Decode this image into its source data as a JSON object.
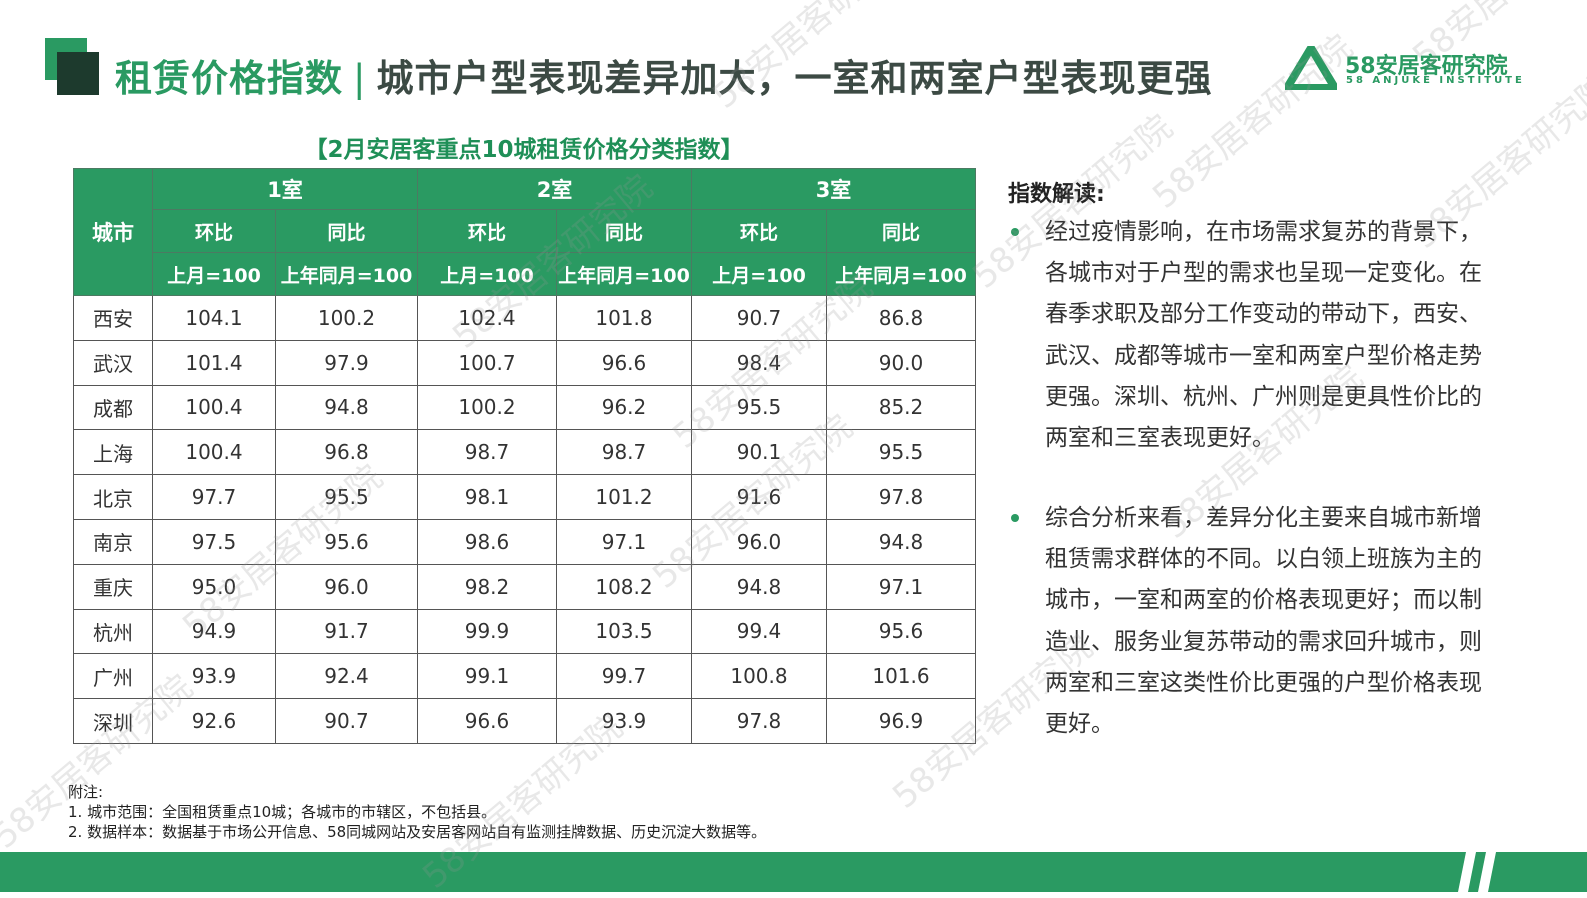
{
  "header": {
    "title_main": "租赁价格指数",
    "separator": "|",
    "title_sub": "城市户型表现差异加大，一室和两室户型表现更强",
    "logo_name": "58安居客研究院",
    "logo_en": "58 ANJUKE INSTITUTE"
  },
  "watermark": "58安居客研究院",
  "table": {
    "title": "【2月安居客重点10城租赁价格分类指数】",
    "city_header": "城市",
    "groups": [
      "1室",
      "2室",
      "3室"
    ],
    "sub_headers": [
      "环比",
      "同比",
      "环比",
      "同比",
      "环比",
      "同比"
    ],
    "bases": [
      "上月=100",
      "上年同月=100",
      "上月=100",
      "上年同月=100",
      "上月=100",
      "上年同月=100"
    ],
    "rows": [
      [
        "西安",
        "104.1",
        "100.2",
        "102.4",
        "101.8",
        "90.7",
        "86.8"
      ],
      [
        "武汉",
        "101.4",
        "97.9",
        "100.7",
        "96.6",
        "98.4",
        "90.0"
      ],
      [
        "成都",
        "100.4",
        "94.8",
        "100.2",
        "96.2",
        "95.5",
        "85.2"
      ],
      [
        "上海",
        "100.4",
        "96.8",
        "98.7",
        "98.7",
        "90.1",
        "95.5"
      ],
      [
        "北京",
        "97.7",
        "95.5",
        "98.1",
        "101.2",
        "91.6",
        "97.8"
      ],
      [
        "南京",
        "97.5",
        "95.6",
        "98.6",
        "97.1",
        "96.0",
        "94.8"
      ],
      [
        "重庆",
        "95.0",
        "96.0",
        "98.2",
        "108.2",
        "94.8",
        "97.1"
      ],
      [
        "杭州",
        "94.9",
        "91.7",
        "99.9",
        "103.5",
        "99.4",
        "95.6"
      ],
      [
        "广州",
        "93.9",
        "92.4",
        "99.1",
        "99.7",
        "100.8",
        "101.6"
      ],
      [
        "深圳",
        "92.6",
        "90.7",
        "96.6",
        "93.9",
        "97.8",
        "96.9"
      ]
    ]
  },
  "commentary": {
    "heading": "指数解读:",
    "bullets": [
      "经过疫情影响，在市场需求复苏的背景下，各城市对于户型的需求也呈现一定变化。在春季求职及部分工作变动的带动下，西安、武汉、成都等城市一室和两室户型价格走势更强。深圳、杭州、广州则是更具性价比的两室和三室表现更好。",
      "综合分析来看，差异分化主要来自城市新增租赁需求群体的不同。以白领上班族为主的城市，一室和两室的价格表现更好；而以制造业、服务业复苏带动的需求回升城市，则两室和三室这类性价比更强的户型价格表现更好。"
    ]
  },
  "notes": {
    "heading": "附注:",
    "items": [
      "1. 城市范围：全国租赁重点10城；各城市的市辖区，不包括县。",
      "2. 数据样本：数据基于市场公开信息、58同城网站及安居客网站自有监测挂牌数据、历史沉淀大数据等。"
    ]
  }
}
